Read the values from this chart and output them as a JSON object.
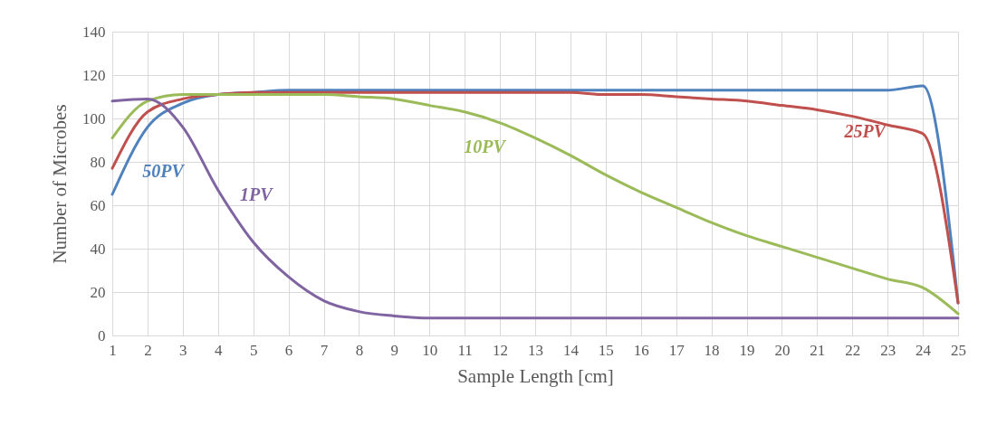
{
  "chart_data": {
    "type": "line",
    "xlabel": "Sample Length [cm]",
    "ylabel": "Number of Microbes",
    "x": [
      1,
      2,
      3,
      4,
      5,
      6,
      7,
      8,
      9,
      10,
      11,
      12,
      13,
      14,
      15,
      16,
      17,
      18,
      19,
      20,
      21,
      22,
      23,
      24,
      25
    ],
    "series": [
      {
        "name": "50PV",
        "color": "#4f81bd",
        "values": [
          65,
          96,
          107,
          111,
          112,
          113,
          113,
          113,
          113,
          113,
          113,
          113,
          113,
          113,
          113,
          113,
          113,
          113,
          113,
          113,
          113,
          113,
          113,
          115,
          15
        ]
      },
      {
        "name": "25PV",
        "color": "#c0504d",
        "values": [
          77,
          103,
          109,
          111,
          112,
          112,
          112,
          112,
          112,
          112,
          112,
          112,
          112,
          112,
          111,
          111,
          110,
          109,
          108,
          106,
          104,
          101,
          97,
          93,
          15
        ]
      },
      {
        "name": "10PV",
        "color": "#9bbb59",
        "values": [
          91,
          108,
          111,
          111,
          111,
          111,
          111,
          110,
          109,
          106,
          103,
          98,
          91,
          83,
          74,
          66,
          59,
          52,
          46,
          41,
          36,
          31,
          26,
          22,
          10
        ]
      },
      {
        "name": "1PV",
        "color": "#8064a2",
        "values": [
          108,
          109,
          96,
          67,
          43,
          27,
          16,
          11,
          9,
          8,
          8,
          8,
          8,
          8,
          8,
          8,
          8,
          8,
          8,
          8,
          8,
          8,
          8,
          8,
          8
        ]
      }
    ],
    "xlim": [
      1,
      25
    ],
    "xticks": [
      1,
      2,
      3,
      4,
      5,
      6,
      7,
      8,
      9,
      10,
      11,
      12,
      13,
      14,
      15,
      16,
      17,
      18,
      19,
      20,
      21,
      22,
      23,
      24,
      25
    ],
    "ylim": [
      0,
      140
    ],
    "yticks": [
      0,
      20,
      40,
      60,
      80,
      100,
      120,
      140
    ],
    "grid": true,
    "marker": "none",
    "line_style": "solid"
  }
}
